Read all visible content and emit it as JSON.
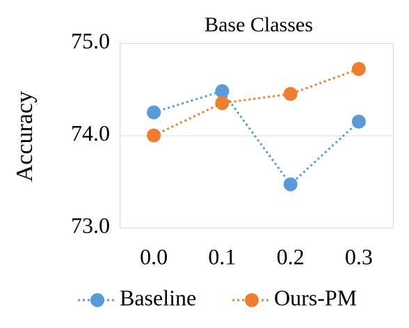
{
  "chart_data": {
    "type": "line",
    "title": "Base Classes",
    "y_label": "Accuracy",
    "categories": [
      "0.0",
      "0.1",
      "0.2",
      "0.3"
    ],
    "series": [
      {
        "name": "Baseline",
        "color": "#5b9bd5",
        "values": [
          74.25,
          74.48,
          73.47,
          74.15
        ]
      },
      {
        "name": "Ours-PM",
        "color": "#ed7d31",
        "values": [
          74.0,
          74.35,
          74.45,
          74.72
        ]
      }
    ],
    "ylim": [
      73,
      75
    ],
    "yticks": [
      {
        "value": 73,
        "label": "73.0"
      },
      {
        "value": 74,
        "label": "74.0"
      },
      {
        "value": 75,
        "label": "75.0"
      }
    ],
    "grid": true
  }
}
